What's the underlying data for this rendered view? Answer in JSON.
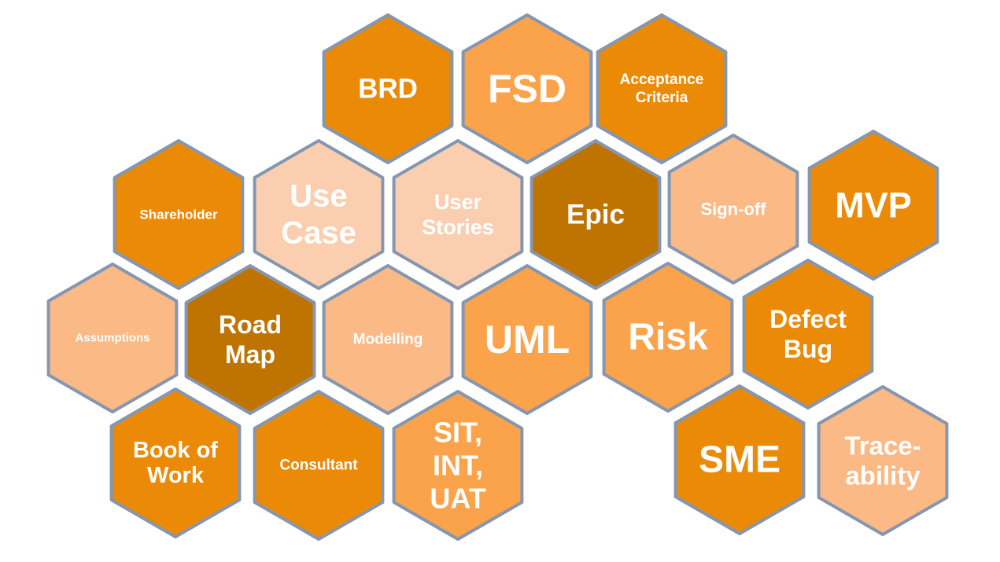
{
  "palette": {
    "dark": "#bf7402",
    "main": "#ea8a07",
    "medium": "#faa34a",
    "light": "#fab985",
    "pale": "#fbceb0",
    "border": "#8496b0",
    "text": "#ffffff"
  },
  "hexagons": [
    {
      "id": "brd",
      "lines": [
        "BRD"
      ],
      "shade": "main"
    },
    {
      "id": "fsd",
      "lines": [
        "FSD"
      ],
      "shade": "medium"
    },
    {
      "id": "acceptance-criteria",
      "lines": [
        "Acceptance",
        "Criteria"
      ],
      "shade": "main"
    },
    {
      "id": "shareholder",
      "lines": [
        "Shareholder"
      ],
      "shade": "main"
    },
    {
      "id": "use-case",
      "lines": [
        "Use",
        "Case"
      ],
      "shade": "pale"
    },
    {
      "id": "user-stories",
      "lines": [
        "User",
        "Stories"
      ],
      "shade": "pale"
    },
    {
      "id": "epic",
      "lines": [
        "Epic"
      ],
      "shade": "dark"
    },
    {
      "id": "sign-off",
      "lines": [
        "Sign-off"
      ],
      "shade": "light"
    },
    {
      "id": "mvp",
      "lines": [
        "MVP"
      ],
      "shade": "main"
    },
    {
      "id": "assumptions",
      "lines": [
        "Assumptions"
      ],
      "shade": "light"
    },
    {
      "id": "road-map",
      "lines": [
        "Road",
        "Map"
      ],
      "shade": "dark"
    },
    {
      "id": "modelling",
      "lines": [
        "Modelling"
      ],
      "shade": "light"
    },
    {
      "id": "uml",
      "lines": [
        "UML"
      ],
      "shade": "medium"
    },
    {
      "id": "risk",
      "lines": [
        "Risk"
      ],
      "shade": "medium"
    },
    {
      "id": "defect-bug",
      "lines": [
        "Defect",
        "Bug"
      ],
      "shade": "main"
    },
    {
      "id": "book-of-work",
      "lines": [
        "Book of",
        "Work"
      ],
      "shade": "main"
    },
    {
      "id": "consultant",
      "lines": [
        "Consultant"
      ],
      "shade": "main"
    },
    {
      "id": "sit-int-uat",
      "lines": [
        "SIT,",
        "INT,",
        "UAT"
      ],
      "shade": "medium"
    },
    {
      "id": "sme",
      "lines": [
        "SME"
      ],
      "shade": "main"
    },
    {
      "id": "traceability",
      "lines": [
        "Trace-",
        "ability"
      ],
      "shade": "light"
    }
  ]
}
